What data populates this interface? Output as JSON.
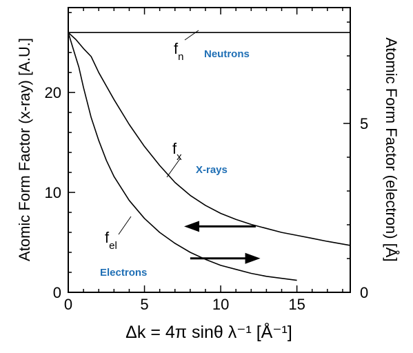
{
  "chart_data": {
    "type": "line",
    "xlabel": "Δk  = 4π sinθ  λ⁻¹  [Å⁻¹]",
    "ylabel_left": "Atomic Form Factor (x-ray)  [A.U.]",
    "ylabel_right": "Atomic Form Factor (electron)  [Å]",
    "xlim": [
      0,
      18.5
    ],
    "ylim_left": [
      0,
      28.5
    ],
    "ylim_right": [
      0,
      8.43
    ],
    "x_ticks": [
      0,
      5,
      10,
      15
    ],
    "y_ticks_left": [
      0,
      10,
      20
    ],
    "y_ticks_right": [
      0,
      5
    ],
    "grid": false,
    "series": [
      {
        "name": "Neutrons",
        "curve_label": "f",
        "curve_sub": "n",
        "axis": "left",
        "color": "#1f6fb5",
        "x": [
          0,
          18.5
        ],
        "y": [
          26.0,
          26.0
        ]
      },
      {
        "name": "X-rays",
        "curve_label": "f",
        "curve_sub": "x",
        "axis": "left",
        "color": "#1f6fb5",
        "x": [
          0,
          0.5,
          1,
          1.5,
          2,
          3,
          4,
          5,
          6,
          7,
          8,
          9,
          10,
          11,
          12,
          13,
          14,
          15,
          16,
          17,
          18.5
        ],
        "y": [
          26.0,
          25.3,
          24.4,
          23.6,
          22.0,
          19.3,
          16.8,
          14.6,
          12.7,
          11.0,
          9.7,
          8.7,
          7.9,
          7.3,
          6.8,
          6.4,
          6.0,
          5.7,
          5.4,
          5.1,
          4.7
        ]
      },
      {
        "name": "Electrons",
        "curve_label": "f",
        "curve_sub": "el",
        "axis": "left",
        "color": "#1f6fb5",
        "x": [
          0,
          0.3,
          0.7,
          1,
          1.5,
          2,
          2.5,
          3,
          4,
          5,
          6,
          7,
          8,
          9,
          10,
          11,
          12,
          13,
          14,
          15
        ],
        "y": [
          26.0,
          24.5,
          22.5,
          20.5,
          17.5,
          15.2,
          13.2,
          11.6,
          9.2,
          7.4,
          6.0,
          4.9,
          4.0,
          3.3,
          2.7,
          2.3,
          1.9,
          1.6,
          1.4,
          1.2
        ]
      }
    ],
    "arrows": [
      {
        "from": [
          12.3,
          6.6
        ],
        "to": [
          7.6,
          6.6
        ]
      },
      {
        "from": [
          8.0,
          3.4
        ],
        "to": [
          12.6,
          3.4
        ]
      }
    ]
  }
}
